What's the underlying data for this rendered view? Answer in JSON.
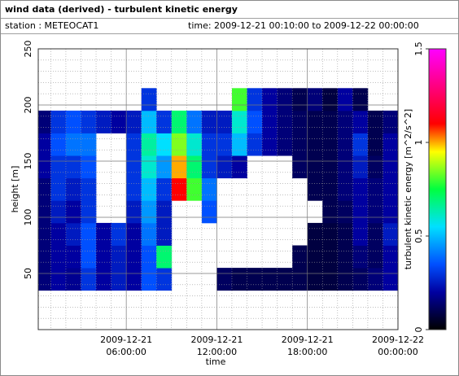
{
  "header": {
    "title": "wind data (derived) - turbulent kinetic energy",
    "station": "station : METEOCAT1",
    "time": "time: 2009-12-21 00:10:00 to 2009-12-22 00:00:00"
  },
  "chart_data": {
    "type": "heatmap",
    "xlabel": "time",
    "ylabel": "height [m]",
    "colorbar_label": "turbulent kinetic energy [m^2/s^2]",
    "xlim": [
      0.17,
      24
    ],
    "ylim": [
      0,
      250
    ],
    "xticks": [
      {
        "value": 6,
        "label": [
          "2009-12-21",
          "06:00:00"
        ]
      },
      {
        "value": 12,
        "label": [
          "2009-12-21",
          "12:00:00"
        ]
      },
      {
        "value": 18,
        "label": [
          "2009-12-21",
          "18:00:00"
        ]
      },
      {
        "value": 24,
        "label": [
          "2009-12-22",
          "00:00:00"
        ]
      }
    ],
    "xminorticks": [
      1,
      2,
      3,
      4,
      5,
      7,
      8,
      9,
      10,
      11,
      13,
      14,
      15,
      16,
      17,
      19,
      20,
      21,
      22,
      23
    ],
    "yticks": [
      50,
      100,
      150,
      200,
      250
    ],
    "yminorticks": [
      10,
      20,
      30,
      40,
      60,
      70,
      80,
      90,
      110,
      120,
      130,
      140,
      160,
      170,
      180,
      190,
      210,
      220,
      230,
      240
    ],
    "clim": [
      0,
      1.5
    ],
    "cticks": [
      0,
      0.5,
      1,
      1.5
    ],
    "colorscale": [
      [
        0,
        "#000000"
      ],
      [
        0.2,
        "#0000a0"
      ],
      [
        0.35,
        "#0050ff"
      ],
      [
        0.55,
        "#00e0ff"
      ],
      [
        0.75,
        "#00ff40"
      ],
      [
        0.95,
        "#ffff00"
      ],
      [
        1.1,
        "#ff0000"
      ],
      [
        1.5,
        "#ff00ff"
      ]
    ],
    "x_edges": [
      0.17,
      1,
      2,
      3,
      4,
      5,
      6,
      7,
      8,
      9,
      10,
      11,
      12,
      13,
      14,
      15,
      16,
      17,
      18,
      19,
      20,
      21,
      22,
      23,
      24
    ],
    "y_edges": [
      35,
      55,
      75,
      95,
      115,
      135,
      155,
      175,
      195,
      215
    ],
    "z": [
      [
        0.15,
        0.2,
        0.18,
        0.3,
        0.2,
        0.25,
        0.2,
        0.35,
        0.3,
        null,
        null,
        null,
        0.12,
        0.1,
        0.1,
        0.1,
        0.1,
        0.1,
        0.08,
        0.08,
        0.1,
        0.12,
        0.15,
        0.2
      ],
      [
        0.15,
        0.2,
        0.2,
        0.35,
        0.2,
        0.25,
        0.2,
        0.35,
        0.7,
        null,
        null,
        null,
        null,
        null,
        null,
        null,
        null,
        0.1,
        0.08,
        0.08,
        0.1,
        0.15,
        0.12,
        0.2
      ],
      [
        0.15,
        0.2,
        0.25,
        0.35,
        0.2,
        0.3,
        0.2,
        0.4,
        0.25,
        null,
        null,
        null,
        null,
        null,
        null,
        null,
        null,
        null,
        0.08,
        0.08,
        0.1,
        0.2,
        0.12,
        0.25
      ],
      [
        0.15,
        0.25,
        0.2,
        0.3,
        null,
        null,
        0.25,
        0.45,
        0.25,
        null,
        null,
        0.35,
        null,
        null,
        null,
        null,
        null,
        null,
        null,
        0.1,
        0.12,
        0.2,
        0.15,
        0.2
      ],
      [
        0.15,
        0.3,
        0.25,
        0.3,
        null,
        null,
        0.3,
        0.5,
        0.3,
        1.1,
        0.8,
        0.4,
        null,
        null,
        null,
        null,
        null,
        null,
        0.1,
        0.1,
        0.15,
        0.2,
        0.15,
        0.2
      ],
      [
        0.2,
        0.3,
        0.3,
        0.35,
        null,
        null,
        0.3,
        0.6,
        0.45,
        1.0,
        0.7,
        0.3,
        0.25,
        0.2,
        null,
        null,
        null,
        0.12,
        0.1,
        0.1,
        0.15,
        0.25,
        0.12,
        0.2
      ],
      [
        0.2,
        0.35,
        0.4,
        0.4,
        null,
        null,
        0.3,
        0.65,
        0.55,
        0.85,
        0.6,
        0.3,
        0.3,
        0.5,
        0.3,
        0.2,
        0.15,
        0.12,
        0.1,
        0.1,
        0.15,
        0.3,
        0.1,
        0.2
      ],
      [
        0.15,
        0.3,
        0.35,
        0.3,
        0.25,
        0.2,
        0.25,
        0.5,
        0.3,
        0.7,
        0.4,
        0.25,
        0.25,
        0.6,
        0.35,
        0.2,
        0.15,
        0.12,
        0.1,
        0.1,
        0.15,
        0.2,
        0.1,
        0.15
      ],
      [
        null,
        null,
        null,
        null,
        null,
        null,
        null,
        0.3,
        null,
        null,
        null,
        null,
        null,
        0.8,
        0.3,
        0.2,
        0.15,
        0.1,
        0.15,
        0.08,
        0.2,
        0.1,
        null,
        null
      ]
    ]
  }
}
